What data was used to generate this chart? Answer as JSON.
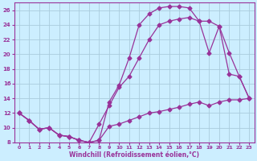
{
  "xlabel": "Windchill (Refroidissement éolien,°C)",
  "bg_color": "#cceeff",
  "grid_color": "#aaccdd",
  "line_color": "#993399",
  "xlim": [
    -0.5,
    23.5
  ],
  "ylim": [
    8,
    27
  ],
  "xticks": [
    0,
    1,
    2,
    3,
    4,
    5,
    6,
    7,
    8,
    9,
    10,
    11,
    12,
    13,
    14,
    15,
    16,
    17,
    18,
    19,
    20,
    21,
    22,
    23
  ],
  "yticks": [
    8,
    10,
    12,
    14,
    16,
    18,
    20,
    22,
    24,
    26
  ],
  "line1_x": [
    0,
    1,
    2,
    3,
    4,
    5,
    6,
    7,
    8,
    9,
    10,
    11,
    12,
    13,
    14,
    15,
    16,
    17,
    18,
    19,
    20,
    21,
    22,
    23
  ],
  "line1_y": [
    12.0,
    11.0,
    9.8,
    10.0,
    9.0,
    8.8,
    8.3,
    8.0,
    8.3,
    10.2,
    10.5,
    11.0,
    11.5,
    12.0,
    12.2,
    12.5,
    12.8,
    13.2,
    13.5,
    13.0,
    13.5,
    13.8,
    13.8,
    14.0
  ],
  "line2_x": [
    0,
    1,
    2,
    3,
    4,
    5,
    6,
    7,
    8,
    9,
    10,
    11,
    12,
    13,
    14,
    15,
    16,
    17,
    18,
    19,
    20,
    21,
    22,
    23
  ],
  "line2_y": [
    12.0,
    11.0,
    9.8,
    10.0,
    9.0,
    8.8,
    8.3,
    8.0,
    8.3,
    13.5,
    15.8,
    19.5,
    24.0,
    25.5,
    26.3,
    26.5,
    26.5,
    26.3,
    24.5,
    20.2,
    23.8,
    17.3,
    17.0,
    14.0
  ],
  "line3_x": [
    0,
    1,
    2,
    3,
    4,
    5,
    6,
    7,
    8,
    9,
    10,
    11,
    12,
    13,
    14,
    15,
    16,
    17,
    18,
    19,
    20,
    21,
    22,
    23
  ],
  "line3_y": [
    12.0,
    11.0,
    9.8,
    10.0,
    9.0,
    8.8,
    8.3,
    8.0,
    10.5,
    13.0,
    15.5,
    17.0,
    19.5,
    22.0,
    24.0,
    24.5,
    24.8,
    25.0,
    24.5,
    24.5,
    23.8,
    20.2,
    17.0,
    14.0
  ]
}
